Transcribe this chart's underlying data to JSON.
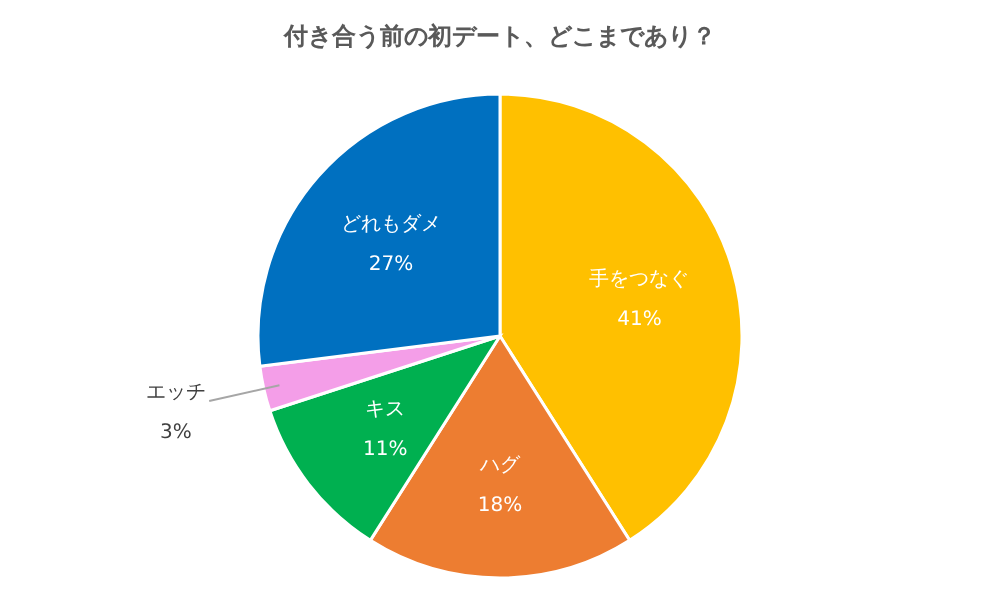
{
  "chart_data": {
    "type": "pie",
    "title": "付き合う前の初デート、どこまであり？",
    "categories": [
      "手をつなぐ",
      "ハグ",
      "キス",
      "エッチ",
      "どれもダメ"
    ],
    "values": [
      41,
      18,
      11,
      3,
      27
    ],
    "value_labels": [
      "41%",
      "18%",
      "11%",
      "3%",
      "27%"
    ],
    "colors": [
      "#ffc000",
      "#ed7d31",
      "#00b050",
      "#f49ee8",
      "#0070c0"
    ]
  }
}
